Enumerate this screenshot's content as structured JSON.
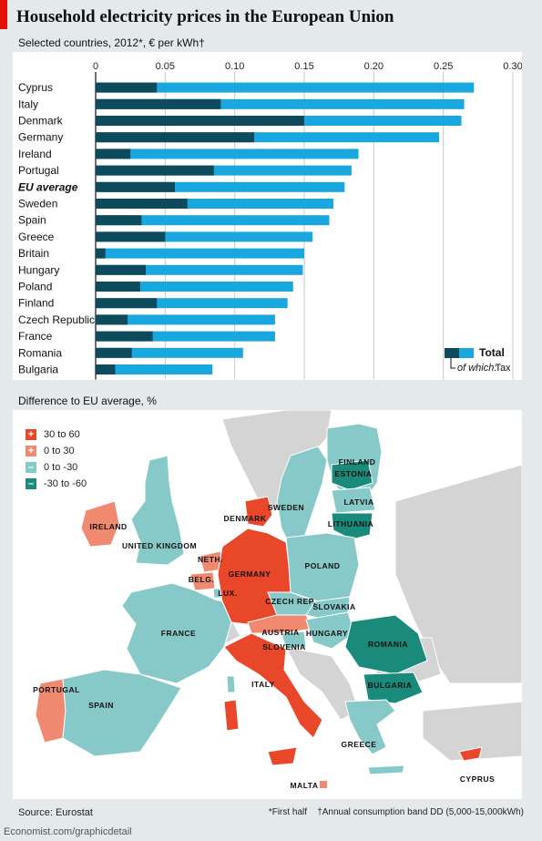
{
  "header": {
    "title": "Household electricity prices in the European Union",
    "subtitle": "Selected countries, 2012*, € per kWh†"
  },
  "chart_data": [
    {
      "type": "bar",
      "orientation": "horizontal",
      "stacked": true,
      "title": "Household electricity prices in the European Union",
      "subtitle": "Selected countries, 2012*, € per kWh†",
      "categories": [
        "Cyprus",
        "Italy",
        "Denmark",
        "Germany",
        "Ireland",
        "Portugal",
        "EU average",
        "Sweden",
        "Spain",
        "Greece",
        "Britain",
        "Hungary",
        "Poland",
        "Finland",
        "Czech Republic",
        "France",
        "Romania",
        "Bulgaria"
      ],
      "highlight_category": "EU average",
      "series": [
        {
          "name": "Tax",
          "color": "#0c4a5c",
          "values": [
            0.044,
            0.09,
            0.15,
            0.114,
            0.025,
            0.085,
            0.057,
            0.066,
            0.033,
            0.05,
            0.007,
            0.036,
            0.032,
            0.044,
            0.023,
            0.041,
            0.026,
            0.014
          ]
        },
        {
          "name": "Total",
          "color": "#1aa7df",
          "values": [
            0.272,
            0.265,
            0.263,
            0.247,
            0.189,
            0.184,
            0.179,
            0.171,
            0.168,
            0.156,
            0.15,
            0.149,
            0.142,
            0.138,
            0.129,
            0.129,
            0.106,
            0.084
          ]
        }
      ],
      "xticks": [
        "0",
        "0.05",
        "0.10",
        "0.15",
        "0.20",
        "0.25",
        "0.30"
      ],
      "xlim": [
        0,
        0.3
      ],
      "grid": true,
      "legend": {
        "total_label": "Total",
        "of_which_label": "of which:",
        "tax_label": "Tax",
        "placement": "bottom-right"
      }
    },
    {
      "type": "map",
      "title": "Difference to EU average, %",
      "legend": [
        {
          "symbol": "+",
          "label": "30 to 60",
          "color": "#e8472a"
        },
        {
          "symbol": "+",
          "label": "0 to 30",
          "color": "#ef8a70"
        },
        {
          "symbol": "–",
          "label": "0 to -30",
          "color": "#87c9c9"
        },
        {
          "symbol": "–",
          "label": "-30 to -60",
          "color": "#1a8a7a"
        }
      ],
      "regions": [
        {
          "name": "FINLAND",
          "class": "0 to -30"
        },
        {
          "name": "SWEDEN",
          "class": "0 to -30"
        },
        {
          "name": "ESTONIA",
          "class": "-30 to -60"
        },
        {
          "name": "LATVIA",
          "class": "0 to -30"
        },
        {
          "name": "LITHUANIA",
          "class": "-30 to -60"
        },
        {
          "name": "IRELAND",
          "class": "0 to 30"
        },
        {
          "name": "UNITED KINGDOM",
          "class": "0 to -30"
        },
        {
          "name": "DENMARK",
          "class": "30 to 60"
        },
        {
          "name": "NETH.",
          "class": "0 to 30"
        },
        {
          "name": "BELG.",
          "class": "0 to 30"
        },
        {
          "name": "LUX.",
          "class": "0 to -30"
        },
        {
          "name": "GERMANY",
          "class": "30 to 60"
        },
        {
          "name": "POLAND",
          "class": "0 to -30"
        },
        {
          "name": "CZECH REP.",
          "class": "0 to -30"
        },
        {
          "name": "SLOVAKIA",
          "class": "0 to -30"
        },
        {
          "name": "AUSTRIA",
          "class": "0 to 30"
        },
        {
          "name": "HUNGARY",
          "class": "0 to -30"
        },
        {
          "name": "SLOVENIA",
          "class": "0 to -30"
        },
        {
          "name": "FRANCE",
          "class": "0 to -30"
        },
        {
          "name": "ROMANIA",
          "class": "-30 to -60"
        },
        {
          "name": "BULGARIA",
          "class": "-30 to -60"
        },
        {
          "name": "PORTUGAL",
          "class": "0 to 30"
        },
        {
          "name": "SPAIN",
          "class": "0 to -30"
        },
        {
          "name": "ITALY",
          "class": "30 to 60"
        },
        {
          "name": "GREECE",
          "class": "0 to -30"
        },
        {
          "name": "MALTA",
          "class": "0 to 30"
        },
        {
          "name": "CYPRUS",
          "class": "30 to 60"
        }
      ]
    }
  ],
  "colors": {
    "tax": "#0c4a5c",
    "total": "#1aa7df",
    "map_30_60": "#e8472a",
    "map_0_30": "#ef8a70",
    "map_0_m30": "#87c9c9",
    "map_m30_m60": "#1a8a7a",
    "map_other": "#d4d4d4",
    "sea": "#ffffff"
  },
  "map_title": "Difference to EU average, %",
  "footer": {
    "source": "Source: Eurostat",
    "note_first": "*First half",
    "note_band": "†Annual consumption band DD (5,000-15,000kWh)",
    "url": "Economist.com/graphicdetail"
  }
}
